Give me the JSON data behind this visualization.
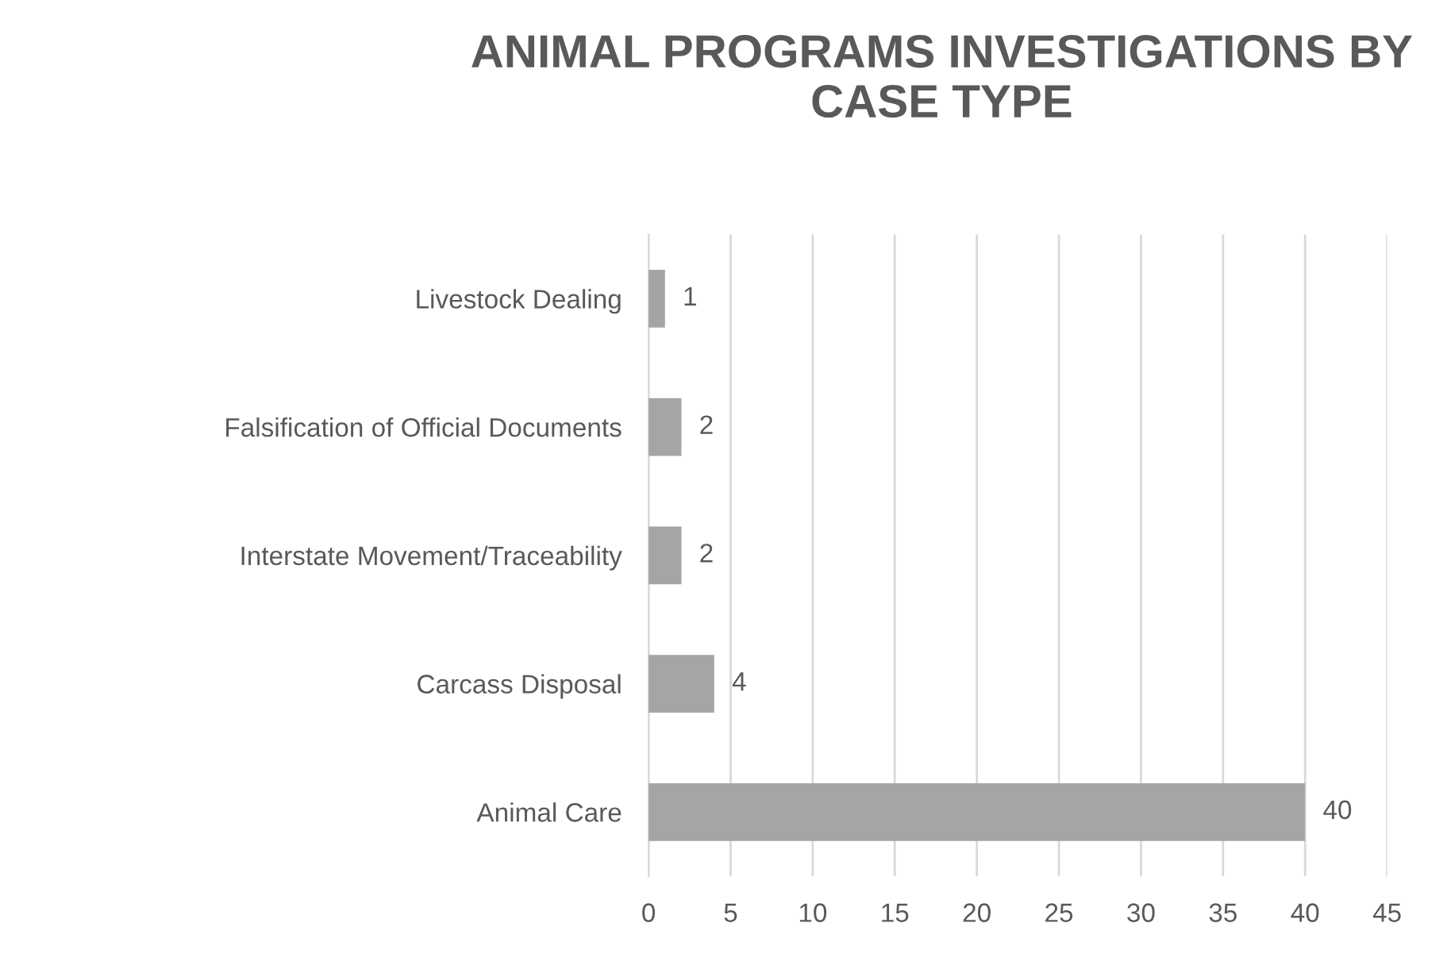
{
  "chart_data": {
    "type": "bar",
    "orientation": "horizontal",
    "title": "ANIMAL PROGRAMS INVESTIGATIONS BY CASE TYPE",
    "categories": [
      "Livestock Dealing",
      "Falsification of Official Documents",
      "Interstate Movement/Traceability",
      "Carcass Disposal",
      "Animal Care"
    ],
    "values": [
      1,
      2,
      2,
      4,
      40
    ],
    "color": "#a5a5a5",
    "xlim": [
      0,
      45
    ],
    "xticks": [
      0,
      5,
      10,
      15,
      20,
      25,
      30,
      35,
      40,
      45
    ],
    "grid": "x",
    "data_labels": true
  }
}
